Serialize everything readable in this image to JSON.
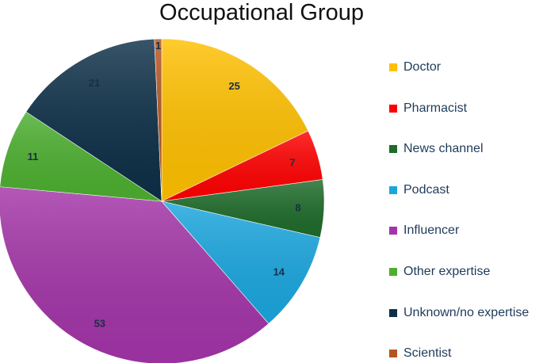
{
  "chart_data": {
    "type": "pie",
    "title": "Occupational Group",
    "legend_position": "right",
    "start_angle_deg": 0,
    "direction": "clockwise",
    "slices": [
      {
        "label": "Doctor",
        "value": 25,
        "color": "#ffc000"
      },
      {
        "label": "Pharmacist",
        "value": 7,
        "color": "#ff0000"
      },
      {
        "label": "News channel",
        "value": 8,
        "color": "#1e6b2a"
      },
      {
        "label": "Podcast",
        "value": 14,
        "color": "#1aa6de"
      },
      {
        "label": "Influencer",
        "value": 53,
        "color": "#a334a8"
      },
      {
        "label": "Other expertise",
        "value": 11,
        "color": "#4caf2f"
      },
      {
        "label": "Unknown/no expertise",
        "value": 21,
        "color": "#0d2f47"
      },
      {
        "label": "Scientist",
        "value": 1,
        "color": "#b4541f"
      }
    ]
  }
}
